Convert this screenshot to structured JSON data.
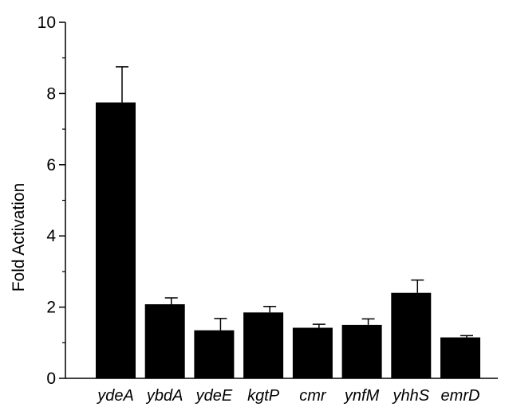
{
  "chart_data": {
    "type": "bar",
    "title": "",
    "xlabel": "",
    "ylabel": "Fold Activation",
    "categories": [
      "ydeA",
      "ybdA",
      "ydeE",
      "kgtP",
      "cmr",
      "ynfM",
      "yhhS",
      "emrD"
    ],
    "values": [
      7.75,
      2.08,
      1.35,
      1.85,
      1.42,
      1.5,
      2.4,
      1.15
    ],
    "errors": [
      1.0,
      0.18,
      0.33,
      0.17,
      0.1,
      0.17,
      0.36,
      0.05
    ],
    "ylim": [
      0,
      10
    ],
    "yticks": [
      "0",
      "2",
      "4",
      "6",
      "8",
      "10"
    ],
    "grid": false,
    "bar_color": "#000000"
  }
}
